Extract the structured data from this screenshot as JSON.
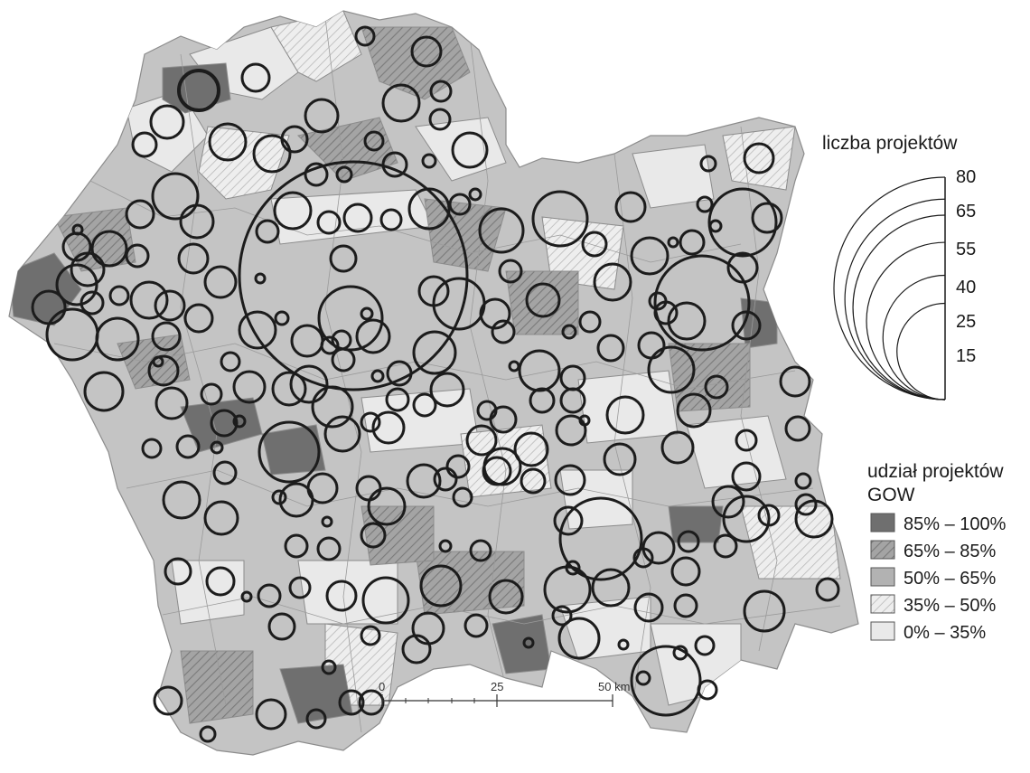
{
  "size_legend": {
    "title": "liczba projektów",
    "values": [
      80,
      65,
      55,
      40,
      25,
      15
    ]
  },
  "share_legend": {
    "title_line1": "udział projektów",
    "title_line2": "GOW",
    "classes": [
      {
        "label": "85% – 100%",
        "color": "#6f6f6f",
        "hatch": false
      },
      {
        "label": "65% – 85%",
        "color": "#9a9a9a",
        "hatch": true
      },
      {
        "label": "50% – 65%",
        "color": "#b2b2b2",
        "hatch": false
      },
      {
        "label": "35% – 50%",
        "color": "#e4e4e4",
        "hatch": true
      },
      {
        "label": "0% – 35%",
        "color": "#e9e9e9",
        "hatch": false
      }
    ]
  },
  "scale_bar": {
    "labels": [
      "0",
      "25",
      "50 km"
    ]
  }
}
